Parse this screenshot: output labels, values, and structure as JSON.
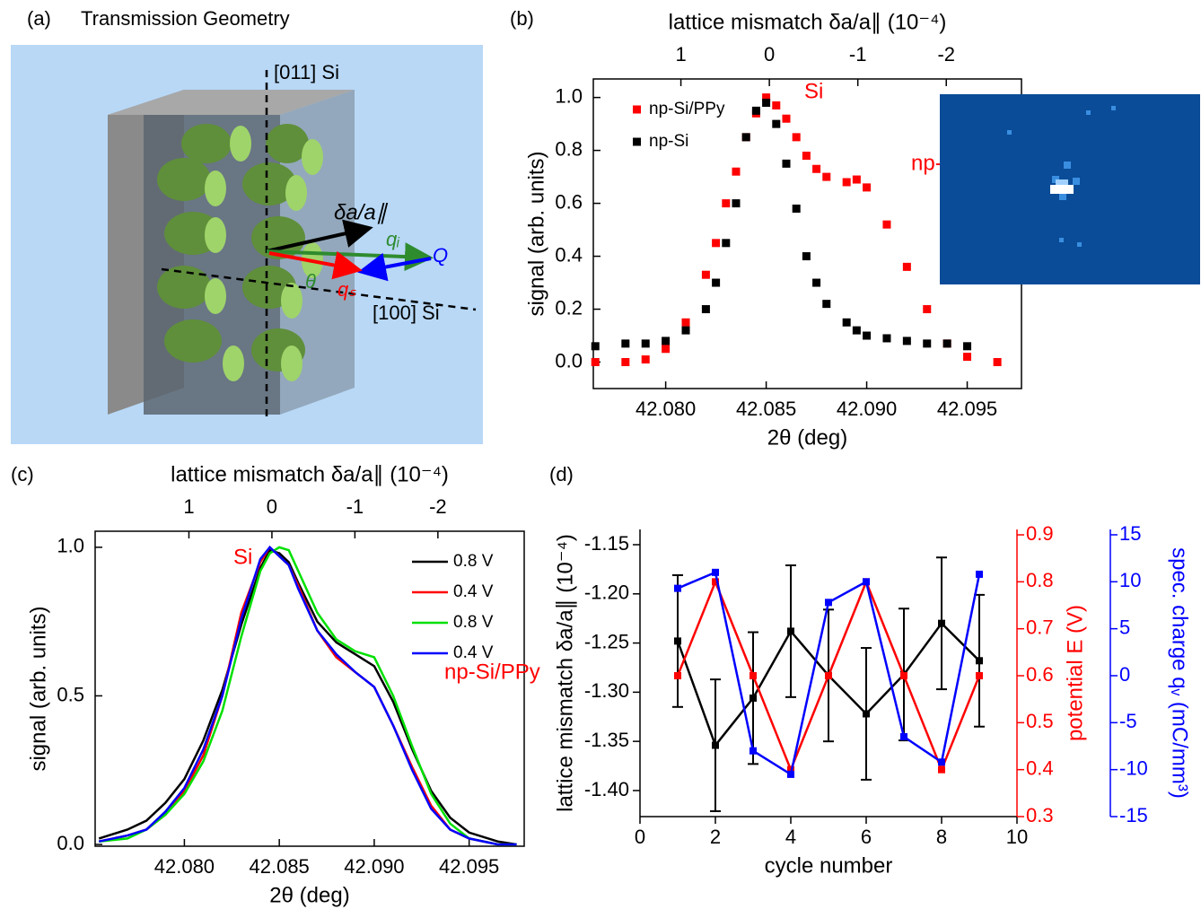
{
  "panel_a": {
    "label": "(a)",
    "title": "Transmission Geometry",
    "labels": [
      "[011] Si",
      "δa/a∥",
      "qᵢ",
      "Q",
      "θ",
      "qₛ",
      "[100] Si"
    ]
  },
  "chart_data": [
    {
      "type": "scatter",
      "label": "(b)",
      "x_label": "2θ (deg)",
      "y_label": "signal (arb. units)",
      "x2_label": "lattice mismatch δa/a∥ (10⁻⁴)",
      "x": [
        42.0765,
        42.078,
        42.079,
        42.08,
        42.081,
        42.082,
        42.0825,
        42.083,
        42.0835,
        42.084,
        42.0845,
        42.085,
        42.0855,
        42.086,
        42.0865,
        42.087,
        42.0875,
        42.088,
        42.089,
        42.0895,
        42.09,
        42.091,
        42.092,
        42.093,
        42.094,
        42.095,
        42.0965
      ],
      "series": [
        {
          "name": "np-Si/PPy",
          "color": "#ff0000",
          "values": [
            0.0,
            0.0,
            0.01,
            0.05,
            0.15,
            0.33,
            0.45,
            0.6,
            0.72,
            0.85,
            0.94,
            1.0,
            0.97,
            0.92,
            0.85,
            0.78,
            0.73,
            0.7,
            0.68,
            0.69,
            0.66,
            0.52,
            0.36,
            0.2,
            0.07,
            0.02,
            0.0
          ]
        },
        {
          "name": "np-Si",
          "color": "#000000",
          "values": [
            0.06,
            0.07,
            0.07,
            0.08,
            0.12,
            0.2,
            0.3,
            0.45,
            0.6,
            0.85,
            0.95,
            0.98,
            0.9,
            0.75,
            0.58,
            0.4,
            0.3,
            0.22,
            0.15,
            0.12,
            0.1,
            0.09,
            0.08,
            0.07,
            0.07,
            0.06,
            null
          ]
        }
      ],
      "xlim": [
        42.0764,
        42.0977
      ],
      "xticks": [
        {
          "value": 42.08,
          "label": "42.080"
        },
        {
          "value": 42.085,
          "label": "42.085"
        },
        {
          "value": 42.09,
          "label": "42.090"
        },
        {
          "value": 42.095,
          "label": "42.095"
        }
      ],
      "x2lim": [
        1.99,
        -2.85
      ],
      "x2ticks": [
        1,
        0,
        -1,
        -2
      ],
      "ylim": [
        -0.1,
        1.07
      ],
      "yticks": [
        {
          "value": 0,
          "label": "0.0"
        },
        0.2,
        0.4,
        0.6,
        0.8,
        {
          "value": 1,
          "label": "1.0"
        }
      ],
      "annotations": [
        "Si",
        "np-Si/PPy"
      ],
      "annotation_color": "#ff0000",
      "legend": "upper left"
    },
    {
      "type": "line",
      "label": "(c)",
      "x_label": "2θ (deg)",
      "y_label": "signal (arb. units)",
      "x2_label": "lattice mismatch δa/a∥ (10⁻⁴)",
      "x": [
        42.0755,
        42.077,
        42.078,
        42.079,
        42.08,
        42.081,
        42.082,
        42.083,
        42.084,
        42.0845,
        42.085,
        42.0855,
        42.086,
        42.087,
        42.088,
        42.089,
        42.09,
        42.091,
        42.092,
        42.093,
        42.094,
        42.095,
        42.0965,
        42.0975
      ],
      "series": [
        {
          "name": "0.8 V",
          "color": "#000000",
          "values": [
            0.02,
            0.05,
            0.08,
            0.14,
            0.22,
            0.35,
            0.52,
            0.74,
            0.93,
            0.99,
            0.98,
            0.95,
            0.88,
            0.75,
            0.68,
            0.64,
            0.6,
            0.48,
            0.32,
            0.18,
            0.09,
            0.04,
            0.01,
            0.0
          ]
        },
        {
          "name": "0.4 V",
          "color": "#ff0000",
          "values": [
            0.01,
            0.03,
            0.05,
            0.1,
            0.18,
            0.3,
            0.5,
            0.78,
            0.95,
            1.0,
            0.97,
            0.94,
            0.87,
            0.72,
            0.63,
            0.58,
            0.53,
            0.4,
            0.26,
            0.13,
            0.05,
            0.02,
            0.0,
            0.0
          ]
        },
        {
          "name": "0.8 V",
          "color": "#00e000",
          "values": [
            0.01,
            0.02,
            0.05,
            0.1,
            0.17,
            0.28,
            0.45,
            0.7,
            0.92,
            0.98,
            1.0,
            0.99,
            0.92,
            0.78,
            0.69,
            0.65,
            0.63,
            0.5,
            0.33,
            0.17,
            0.07,
            0.02,
            0.0,
            0.0
          ]
        },
        {
          "name": "0.4 V",
          "color": "#0000ff",
          "values": [
            0.01,
            0.03,
            0.05,
            0.11,
            0.19,
            0.32,
            0.5,
            0.76,
            0.96,
            1.0,
            0.97,
            0.94,
            0.86,
            0.72,
            0.64,
            0.58,
            0.53,
            0.4,
            0.25,
            0.12,
            0.05,
            0.02,
            0.0,
            0.0
          ]
        }
      ],
      "xlim": [
        42.0753,
        42.0979
      ],
      "xticks": [
        {
          "value": 42.08,
          "label": "42.080"
        },
        {
          "value": 42.085,
          "label": "42.085"
        },
        {
          "value": 42.09,
          "label": "42.090"
        },
        {
          "value": 42.095,
          "label": "42.095"
        }
      ],
      "x2lim": [
        2.13,
        -3.04
      ],
      "x2ticks": [
        1,
        0,
        -1,
        -2
      ],
      "ylim": [
        -0.006,
        1.054
      ],
      "yticks": [
        {
          "value": 0,
          "label": "0.0"
        },
        0.5,
        {
          "value": 1,
          "label": "1.0"
        }
      ],
      "annotations": [
        "Si",
        "np-Si/PPy"
      ],
      "annotation_color": "#ff0000",
      "legend": "upper right"
    },
    {
      "type": "line",
      "label": "(d)",
      "x_label": "cycle number",
      "y_label": "lattice mismatch δa/a∥ (10⁻⁴)",
      "y2_label": "potential E (V)",
      "y2_color": "#ff0000",
      "y3_label": "spec. charge qᵥ (mC/mm³)",
      "y3_color": "#0000ff",
      "x": [
        1,
        2,
        3,
        4,
        5,
        6,
        7,
        8,
        9
      ],
      "series": [
        {
          "color": "#000000",
          "values": [
            -1.248,
            -1.354,
            -1.306,
            -1.238,
            -1.283,
            -1.322,
            -1.282,
            -1.23,
            -1.268
          ],
          "errors": [
            0.067,
            0.067,
            0.067,
            0.067,
            0.067,
            0.067,
            0.067,
            0.067,
            0.067
          ]
        },
        {
          "color": "#ff0000",
          "axis": "y2",
          "values": [
            0.6,
            0.8,
            0.6,
            0.4,
            0.6,
            0.8,
            0.6,
            0.4,
            0.6
          ]
        },
        {
          "color": "#0000ff",
          "axis": "y3",
          "values": [
            9.3,
            11,
            -8,
            -10.5,
            7.8,
            10,
            -6.5,
            -9.2,
            10.8
          ]
        }
      ],
      "xlim": [
        0,
        10
      ],
      "xticks": [
        0,
        2,
        4,
        6,
        8,
        10
      ],
      "ylim": [
        -1.4265,
        -1.1345
      ],
      "yticks": [
        -1.15,
        {
          "value": -1.2,
          "label": "-1.20"
        },
        -1.25,
        {
          "value": -1.3,
          "label": "-1.30"
        },
        -1.35,
        {
          "value": -1.4,
          "label": "-1.40"
        }
      ],
      "y2lim": [
        0.3,
        0.9115
      ],
      "y2ticks": [
        0.3,
        0.4,
        0.5,
        0.6,
        0.7,
        0.8,
        0.9
      ],
      "y3lim": [
        -15,
        15.57
      ],
      "y3ticks": [
        -15,
        -10,
        -5,
        0,
        5,
        10,
        15
      ]
    }
  ]
}
